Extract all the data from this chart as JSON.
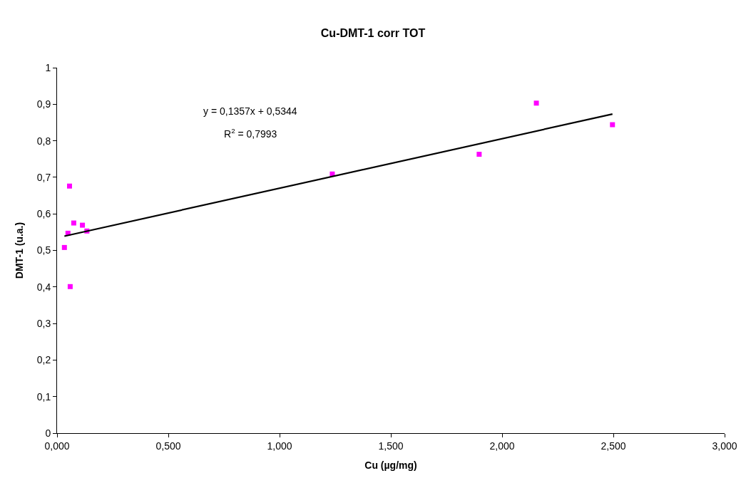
{
  "chart_data": {
    "type": "scatter",
    "title": "Cu-DMT-1 corr TOT",
    "xlabel": "Cu (µg/mg)",
    "ylabel": "DMT-1 (u.a.)",
    "x": [
      0.033,
      0.049,
      0.056,
      0.059,
      0.075,
      0.114,
      0.134,
      1.237,
      1.897,
      2.154,
      2.496
    ],
    "series": [
      {
        "color": "#ff00ff",
        "marker": "square",
        "values": [
          0.508,
          0.547,
          0.676,
          0.401,
          0.575,
          0.569,
          0.553,
          0.709,
          0.763,
          0.903,
          0.844
        ]
      },
      {
        "type": "line",
        "color": "#000000",
        "x": [
          0.033,
          2.496
        ],
        "values": [
          0.539,
          0.873
        ],
        "line_style": "solid"
      }
    ],
    "xlim": [
      0,
      3
    ],
    "ylim": [
      0,
      1
    ],
    "xticks": [
      {
        "value": 0,
        "label": "0,000"
      },
      {
        "value": 0.5,
        "label": "0,500"
      },
      {
        "value": 1,
        "label": "1,000"
      },
      {
        "value": 1.5,
        "label": "1,500"
      },
      {
        "value": 2,
        "label": "2,000"
      },
      {
        "value": 2.5,
        "label": "2,500"
      },
      {
        "value": 3,
        "label": "3,000"
      }
    ],
    "yticks": [
      0,
      {
        "value": 0.1,
        "label": "0,1"
      },
      {
        "value": 0.2,
        "label": "0,2"
      },
      {
        "value": 0.3,
        "label": "0,3"
      },
      {
        "value": 0.4,
        "label": "0,4"
      },
      {
        "value": 0.5,
        "label": "0,5"
      },
      {
        "value": 0.6,
        "label": "0,6"
      },
      {
        "value": 0.7,
        "label": "0,7"
      },
      {
        "value": 0.8,
        "label": "0,8"
      },
      {
        "value": 0.9,
        "label": "0,9"
      },
      1
    ],
    "annotations": [
      "y = 0,1357x + 0,5344",
      "R$^{2}$ = 0,7993"
    ]
  }
}
